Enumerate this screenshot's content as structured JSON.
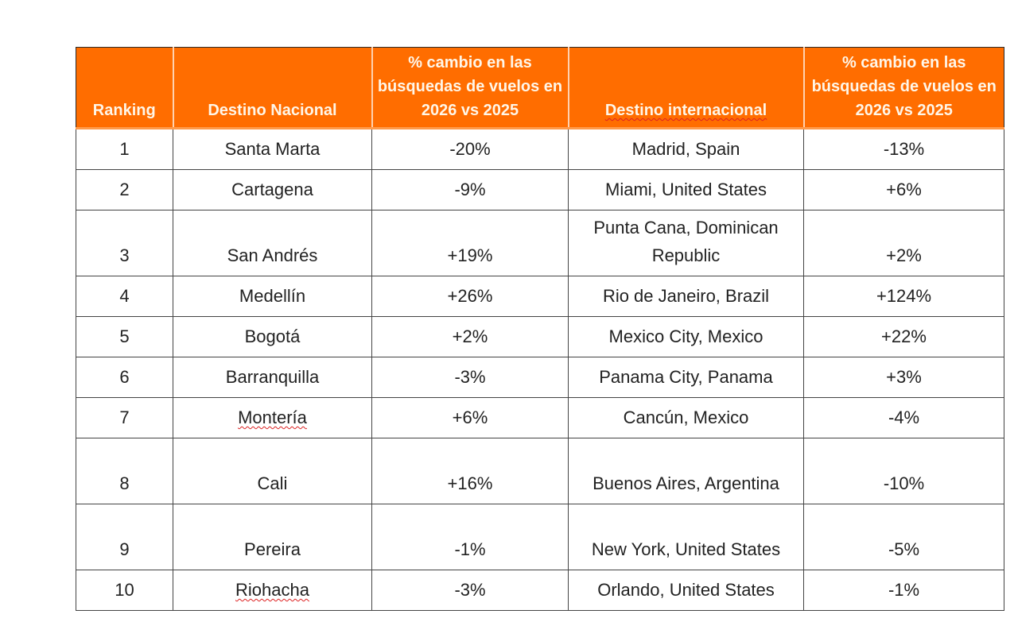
{
  "colors": {
    "header_bg": "#ff6d00",
    "header_text": "#fff6e8"
  },
  "headers": [
    "Ranking",
    "Destino Nacional",
    "% cambio en las búsquedas de vuelos en 2026 vs 2025",
    "Destino internacional",
    "% cambio en las búsquedas de vuelos en 2026 vs 2025"
  ],
  "rows": [
    {
      "rank": "1",
      "national": "Santa Marta",
      "national_change": "-20%",
      "international": "Madrid, Spain",
      "international_change": "-13%"
    },
    {
      "rank": "2",
      "national": "Cartagena",
      "national_change": "-9%",
      "international": "Miami, United States",
      "international_change": "+6%"
    },
    {
      "rank": "3",
      "national": "San Andrés",
      "national_change": "+19%",
      "international": "Punta Cana, Dominican Republic",
      "international_change": "+2%"
    },
    {
      "rank": "4",
      "national": "Medellín",
      "national_change": "+26%",
      "international": "Rio de Janeiro, Brazil",
      "international_change": "+124%"
    },
    {
      "rank": "5",
      "national": "Bogotá",
      "national_change": "+2%",
      "international": "Mexico City, Mexico",
      "international_change": "+22%"
    },
    {
      "rank": "6",
      "national": "Barranquilla",
      "national_change": "-3%",
      "international": "Panama City, Panama",
      "international_change": "+3%"
    },
    {
      "rank": "7",
      "national": "Montería",
      "national_change": "+6%",
      "international": "Cancún, Mexico",
      "international_change": "-4%"
    },
    {
      "rank": "8",
      "national": "Cali",
      "national_change": "+16%",
      "international": "Buenos Aires, Argentina",
      "international_change": "-10%"
    },
    {
      "rank": "9",
      "national": "Pereira",
      "national_change": "-1%",
      "international": "New York, United States",
      "international_change": "-5%"
    },
    {
      "rank": "10",
      "national": "Riohacha",
      "national_change": "-3%",
      "international": "Orlando, United States",
      "international_change": "-1%"
    }
  ]
}
